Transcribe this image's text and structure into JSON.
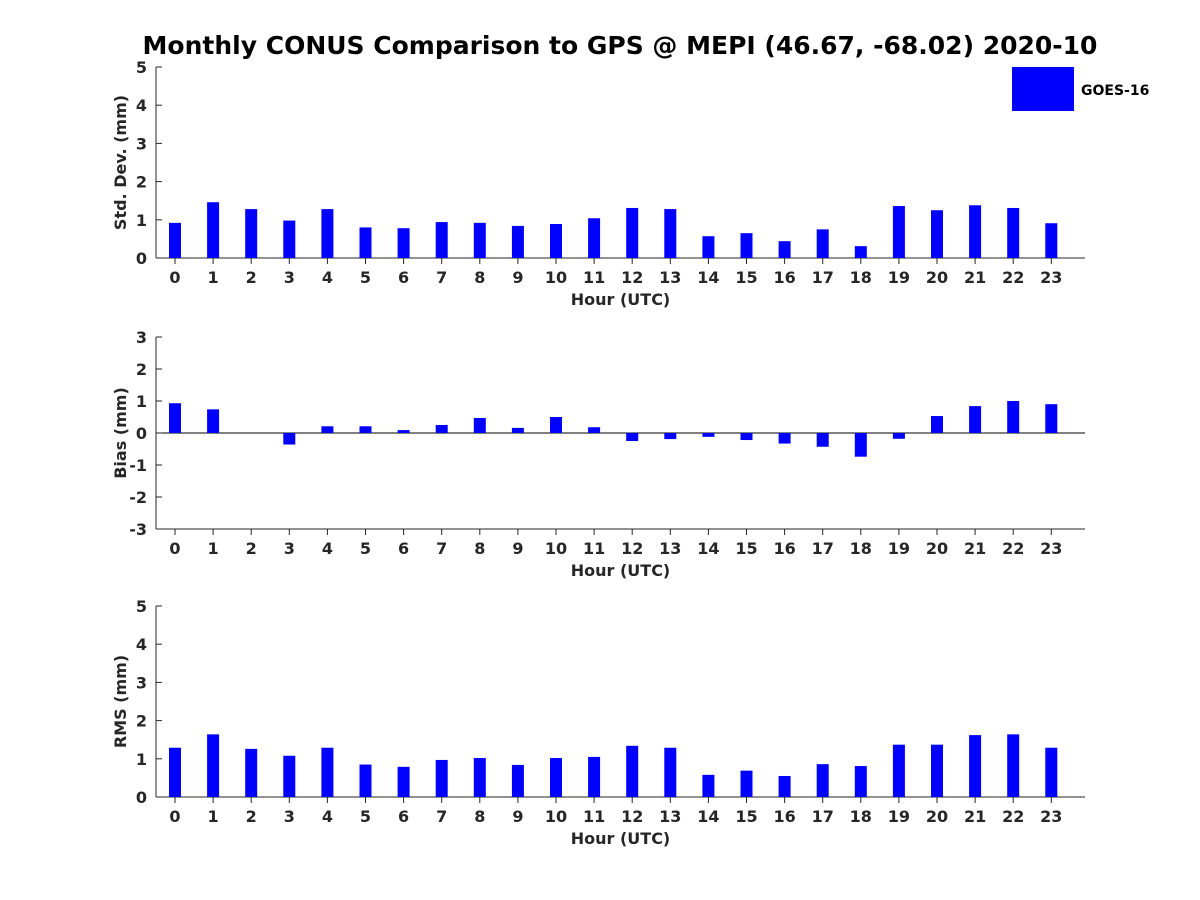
{
  "title": "Monthly CONUS Comparison to GPS @ MEPI (46.67, -68.02) 2020-10",
  "colors": {
    "bar": "#0000ff",
    "axis": "#262626",
    "background": "#ffffff"
  },
  "legend": {
    "label": "GOES-16",
    "placement": "top-right"
  },
  "chart_data": [
    {
      "type": "bar",
      "name": "std-dev",
      "categories": [
        "0",
        "1",
        "2",
        "3",
        "4",
        "5",
        "6",
        "7",
        "8",
        "9",
        "10",
        "11",
        "12",
        "13",
        "14",
        "15",
        "16",
        "17",
        "18",
        "19",
        "20",
        "21",
        "22",
        "23"
      ],
      "series": [
        {
          "name": "GOES-16",
          "values": [
            0.92,
            1.46,
            1.28,
            0.98,
            1.28,
            0.8,
            0.78,
            0.94,
            0.92,
            0.84,
            0.89,
            1.04,
            1.31,
            1.28,
            0.57,
            0.65,
            0.44,
            0.75,
            0.31,
            1.36,
            1.25,
            1.38,
            1.31,
            0.91
          ]
        }
      ],
      "xlabel": "Hour (UTC)",
      "ylabel": "Std. Dev. (mm)",
      "ylim": [
        0,
        5
      ],
      "yticks": [
        "0",
        "1",
        "2",
        "3",
        "4",
        "5"
      ],
      "grid": false
    },
    {
      "type": "bar",
      "name": "bias",
      "categories": [
        "0",
        "1",
        "2",
        "3",
        "4",
        "5",
        "6",
        "7",
        "8",
        "9",
        "10",
        "11",
        "12",
        "13",
        "14",
        "15",
        "16",
        "17",
        "18",
        "19",
        "20",
        "21",
        "22",
        "23"
      ],
      "series": [
        {
          "name": "GOES-16",
          "values": [
            0.93,
            0.74,
            0.0,
            -0.36,
            0.21,
            0.21,
            0.09,
            0.25,
            0.47,
            0.16,
            0.5,
            0.18,
            -0.25,
            -0.19,
            -0.12,
            -0.22,
            -0.33,
            -0.43,
            -0.74,
            -0.18,
            0.53,
            0.84,
            1.0,
            0.9
          ]
        }
      ],
      "xlabel": "Hour (UTC)",
      "ylabel": "Bias (mm)",
      "ylim": [
        -3,
        3
      ],
      "yticks": [
        "-3",
        "-2",
        "-1",
        "0",
        "1",
        "2",
        "3"
      ],
      "grid": false
    },
    {
      "type": "bar",
      "name": "rms",
      "categories": [
        "0",
        "1",
        "2",
        "3",
        "4",
        "5",
        "6",
        "7",
        "8",
        "9",
        "10",
        "11",
        "12",
        "13",
        "14",
        "15",
        "16",
        "17",
        "18",
        "19",
        "20",
        "21",
        "22",
        "23"
      ],
      "series": [
        {
          "name": "GOES-16",
          "values": [
            1.29,
            1.64,
            1.26,
            1.08,
            1.29,
            0.85,
            0.79,
            0.97,
            1.02,
            0.84,
            1.02,
            1.05,
            1.34,
            1.29,
            0.58,
            0.69,
            0.55,
            0.86,
            0.81,
            1.37,
            1.37,
            1.62,
            1.64,
            1.29
          ]
        }
      ],
      "xlabel": "Hour (UTC)",
      "ylabel": "RMS (mm)",
      "ylim": [
        0,
        5
      ],
      "yticks": [
        "0",
        "1",
        "2",
        "3",
        "4",
        "5"
      ],
      "grid": false
    }
  ]
}
